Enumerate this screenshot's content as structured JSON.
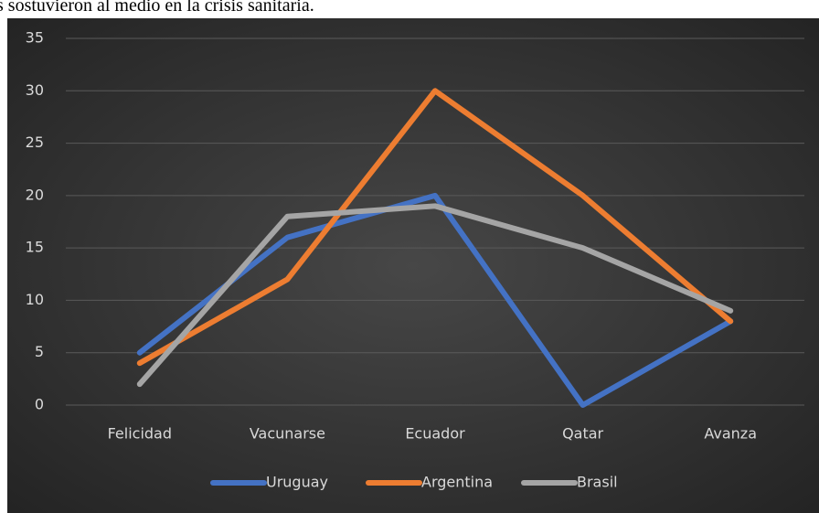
{
  "heading": "s sostuvieron al medio en la crisis sanitaria.",
  "chart_data": {
    "type": "line",
    "categories": [
      "Felicidad",
      "Vacunarse",
      "Ecuador",
      "Qatar",
      "Avanza"
    ],
    "series": [
      {
        "name": "Uruguay",
        "color": "#4472c4",
        "values": [
          5,
          16,
          20,
          0,
          8
        ]
      },
      {
        "name": "Argentina",
        "color": "#ed7d31",
        "values": [
          4,
          12,
          30,
          20,
          8
        ]
      },
      {
        "name": "Brasil",
        "color": "#a5a5a5",
        "values": [
          2,
          18,
          19,
          15,
          9
        ]
      }
    ],
    "ylim": [
      0,
      35
    ],
    "yticks": [
      0,
      5,
      10,
      15,
      20,
      25,
      30,
      35
    ],
    "grid": true,
    "legend": "bottom"
  }
}
